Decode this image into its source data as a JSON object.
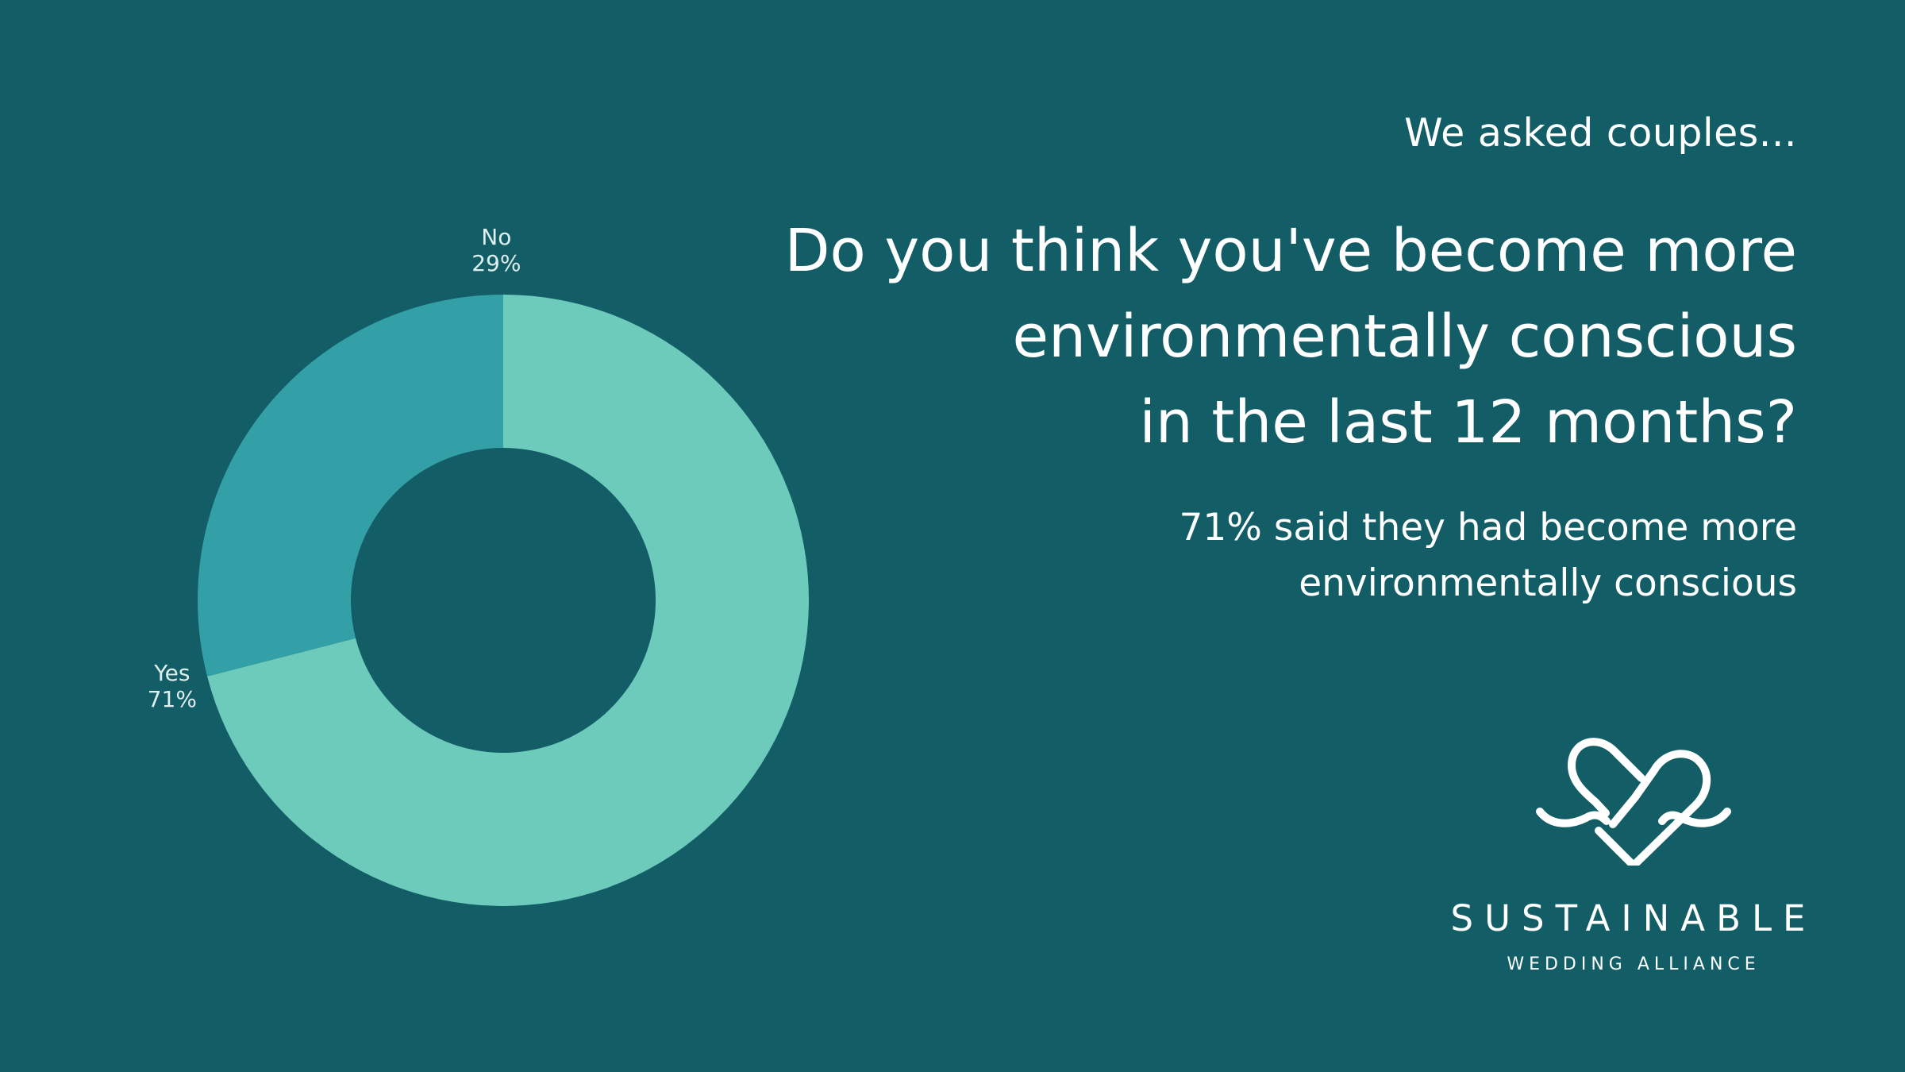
{
  "colors": {
    "background": "#125d66",
    "yes_slice": "#6dcbbb",
    "no_slice": "#33a0a8",
    "text": "#ffffff"
  },
  "eyebrow": "We asked couples...",
  "question_lines": [
    "Do you think you've become more",
    "environmentally conscious",
    "in the last 12 months?"
  ],
  "answer_lines": [
    "71% said they had become more",
    "environmentally conscious"
  ],
  "logo": {
    "icon": "heart-infinity-icon",
    "name": "SUSTAINABLE",
    "subtitle": "WEDDING ALLIANCE"
  },
  "chart_data": {
    "type": "pie",
    "donut": true,
    "categories": [
      "Yes",
      "No"
    ],
    "values": [
      71,
      29
    ],
    "value_labels": [
      "71%",
      "29%"
    ],
    "colors": [
      "#6dcbbb",
      "#33a0a8"
    ],
    "title": "",
    "legend": "none"
  }
}
